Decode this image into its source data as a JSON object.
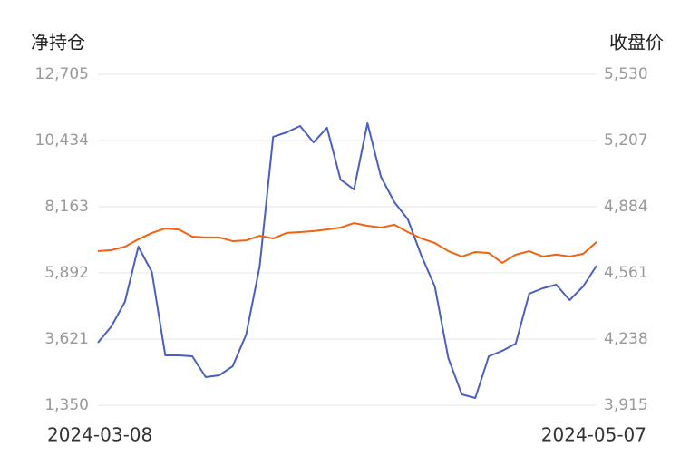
{
  "chart_data": {
    "type": "line",
    "y_title": "净持仓",
    "y2_title": "收盘价",
    "categories": [
      "2024-03-08",
      null,
      null,
      null,
      null,
      null,
      null,
      null,
      null,
      null,
      null,
      null,
      null,
      null,
      null,
      null,
      null,
      null,
      null,
      null,
      null,
      null,
      null,
      null,
      null,
      null,
      null,
      null,
      null,
      null,
      null,
      null,
      null,
      null,
      null,
      null,
      null,
      "2024-05-07"
    ],
    "ylim": [
      1350,
      12705
    ],
    "yticks": [
      {
        "value": 1350,
        "label": "1,350"
      },
      {
        "value": 3621,
        "label": "3,621"
      },
      {
        "value": 5892,
        "label": "5,892"
      },
      {
        "value": 8163,
        "label": "8,163"
      },
      {
        "value": 10434,
        "label": "10,434"
      },
      {
        "value": 12705,
        "label": "12,705"
      }
    ],
    "y2lim": [
      3915,
      5530
    ],
    "y2ticks": [
      {
        "value": 3915,
        "label": "3,915"
      },
      {
        "value": 4238,
        "label": "4,238"
      },
      {
        "value": 4561,
        "label": "4,561"
      },
      {
        "value": 4884,
        "label": "4,884"
      },
      {
        "value": 5207,
        "label": "5,207"
      },
      {
        "value": 5530,
        "label": "5,530"
      }
    ],
    "grid": true,
    "series": [
      {
        "color": "#4a5fc1",
        "values": [
          3497,
          4057,
          4897,
          6794,
          5923,
          3061,
          3061,
          3030,
          2314,
          2377,
          2688,
          3777,
          6110,
          10559,
          10714,
          10932,
          10372,
          10870,
          9096,
          8754,
          11025,
          9190,
          8319,
          7728,
          6483,
          5425,
          2968,
          1723,
          1599,
          3030,
          3217,
          3465,
          5177,
          5363,
          5488,
          4959,
          5425,
          6141
        ]
      },
      {
        "color": "#f2620f",
        "axis": "y2",
        "values": [
          4667,
          4672,
          4689,
          4725,
          4756,
          4778,
          4773,
          4738,
          4734,
          4734,
          4716,
          4720,
          4742,
          4729,
          4756,
          4760,
          4765,
          4773,
          4782,
          4804,
          4791,
          4782,
          4796,
          4760,
          4729,
          4707,
          4667,
          4641,
          4663,
          4658,
          4610,
          4650,
          4667,
          4641,
          4650,
          4641,
          4654,
          4712
        ]
      }
    ]
  }
}
